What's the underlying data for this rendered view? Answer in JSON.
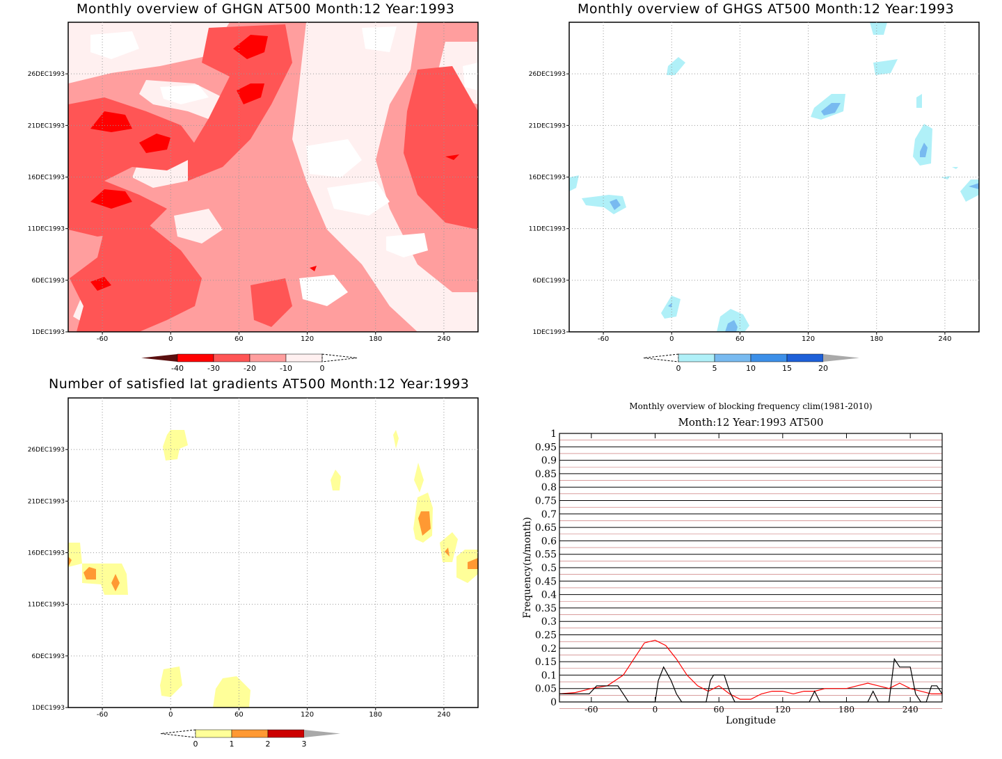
{
  "panels": {
    "ghgn": {
      "title": "Monthly overview of GHGN AT500 Month:12 Year:1993",
      "y_ticks": [
        "1DEC1993",
        "6DEC1993",
        "11DEC1993",
        "16DEC1993",
        "21DEC1993",
        "26DEC1993"
      ],
      "x_ticks": [
        "-60",
        "0",
        "60",
        "120",
        "180",
        "240"
      ],
      "colorbar": {
        "labels": [
          "-40",
          "-30",
          "-20",
          "-10",
          "0"
        ],
        "colors": [
          "#5a0f0f",
          "#ff0000",
          "#ff5555",
          "#ff9e9e",
          "#fff0f0"
        ]
      }
    },
    "ghgs": {
      "title": "Monthly overview of GHGS AT500 Month:12 Year:1993",
      "y_ticks": [
        "1DEC1993",
        "6DEC1993",
        "11DEC1993",
        "16DEC1993",
        "21DEC1993",
        "26DEC1993"
      ],
      "x_ticks": [
        "-60",
        "0",
        "60",
        "120",
        "180",
        "240"
      ],
      "colorbar": {
        "labels": [
          "0",
          "5",
          "10",
          "15",
          "20"
        ],
        "colors": [
          "#b0f0f8",
          "#78baf0",
          "#3c8fe8",
          "#1e60d8",
          "#a9a9a9"
        ]
      }
    },
    "lat_grad": {
      "title": "Number of satisfied lat gradients AT500 Month:12 Year:1993",
      "y_ticks": [
        "1DEC1993",
        "6DEC1993",
        "11DEC1993",
        "16DEC1993",
        "21DEC1993",
        "26DEC1993"
      ],
      "x_ticks": [
        "-60",
        "0",
        "60",
        "120",
        "180",
        "240"
      ],
      "colorbar": {
        "labels": [
          "0",
          "1",
          "2",
          "3"
        ],
        "colors": [
          "#ffff99",
          "#ff9933",
          "#cc0000",
          "#a9a9a9"
        ]
      }
    }
  },
  "chart_data": {
    "type": "line",
    "title": "Monthly overview of blocking frequency clim(1981-2010)",
    "subtitle": "Month:12 Year:1993  AT500",
    "xlabel": "Longitude",
    "ylabel": "Frequency(n/month)",
    "xlim": [
      -90,
      270
    ],
    "ylim": [
      0,
      1
    ],
    "x_ticks": [
      "-60",
      "0",
      "60",
      "120",
      "180",
      "240"
    ],
    "y_ticks": [
      "0",
      "0.05",
      "0.1",
      "0.15",
      "0.2",
      "0.25",
      "0.3",
      "0.35",
      "0.4",
      "0.45",
      "0.5",
      "0.55",
      "0.6",
      "0.65",
      "0.7",
      "0.75",
      "0.8",
      "0.85",
      "0.9",
      "0.95",
      "1"
    ],
    "series": [
      {
        "color": "#ff0000",
        "x": [
          -90,
          -75,
          -60,
          -45,
          -30,
          -20,
          -10,
          0,
          10,
          20,
          30,
          40,
          50,
          60,
          70,
          80,
          90,
          100,
          110,
          120,
          130,
          140,
          150,
          160,
          170,
          180,
          190,
          200,
          210,
          220,
          230,
          240,
          250,
          260,
          270
        ],
        "y": [
          0.03,
          0.035,
          0.05,
          0.06,
          0.1,
          0.16,
          0.22,
          0.23,
          0.21,
          0.16,
          0.1,
          0.06,
          0.04,
          0.06,
          0.03,
          0.01,
          0.01,
          0.03,
          0.04,
          0.04,
          0.03,
          0.04,
          0.04,
          0.05,
          0.05,
          0.05,
          0.06,
          0.07,
          0.06,
          0.05,
          0.07,
          0.05,
          0.04,
          0.03,
          0.03
        ]
      },
      {
        "color": "#000000",
        "x": [
          -90,
          -62,
          -55,
          -35,
          -30,
          -25,
          0,
          3,
          8,
          15,
          20,
          25,
          30,
          40,
          48,
          52,
          55,
          60,
          65,
          70,
          75,
          80,
          90,
          130,
          145,
          150,
          155,
          160,
          180,
          200,
          205,
          210,
          220,
          225,
          230,
          240,
          245,
          250,
          255,
          260,
          265,
          270
        ],
        "y": [
          0.03,
          0.03,
          0.06,
          0.06,
          0.03,
          0.0,
          0.0,
          0.08,
          0.13,
          0.08,
          0.03,
          0.0,
          0.0,
          0.0,
          0.0,
          0.08,
          0.1,
          0.1,
          0.1,
          0.04,
          0.0,
          0.0,
          0.0,
          0.0,
          0.0,
          0.04,
          0.0,
          0.0,
          0.0,
          0.0,
          0.04,
          0.0,
          0.0,
          0.16,
          0.13,
          0.13,
          0.03,
          0.0,
          0.0,
          0.06,
          0.06,
          0.03
        ]
      }
    ]
  }
}
